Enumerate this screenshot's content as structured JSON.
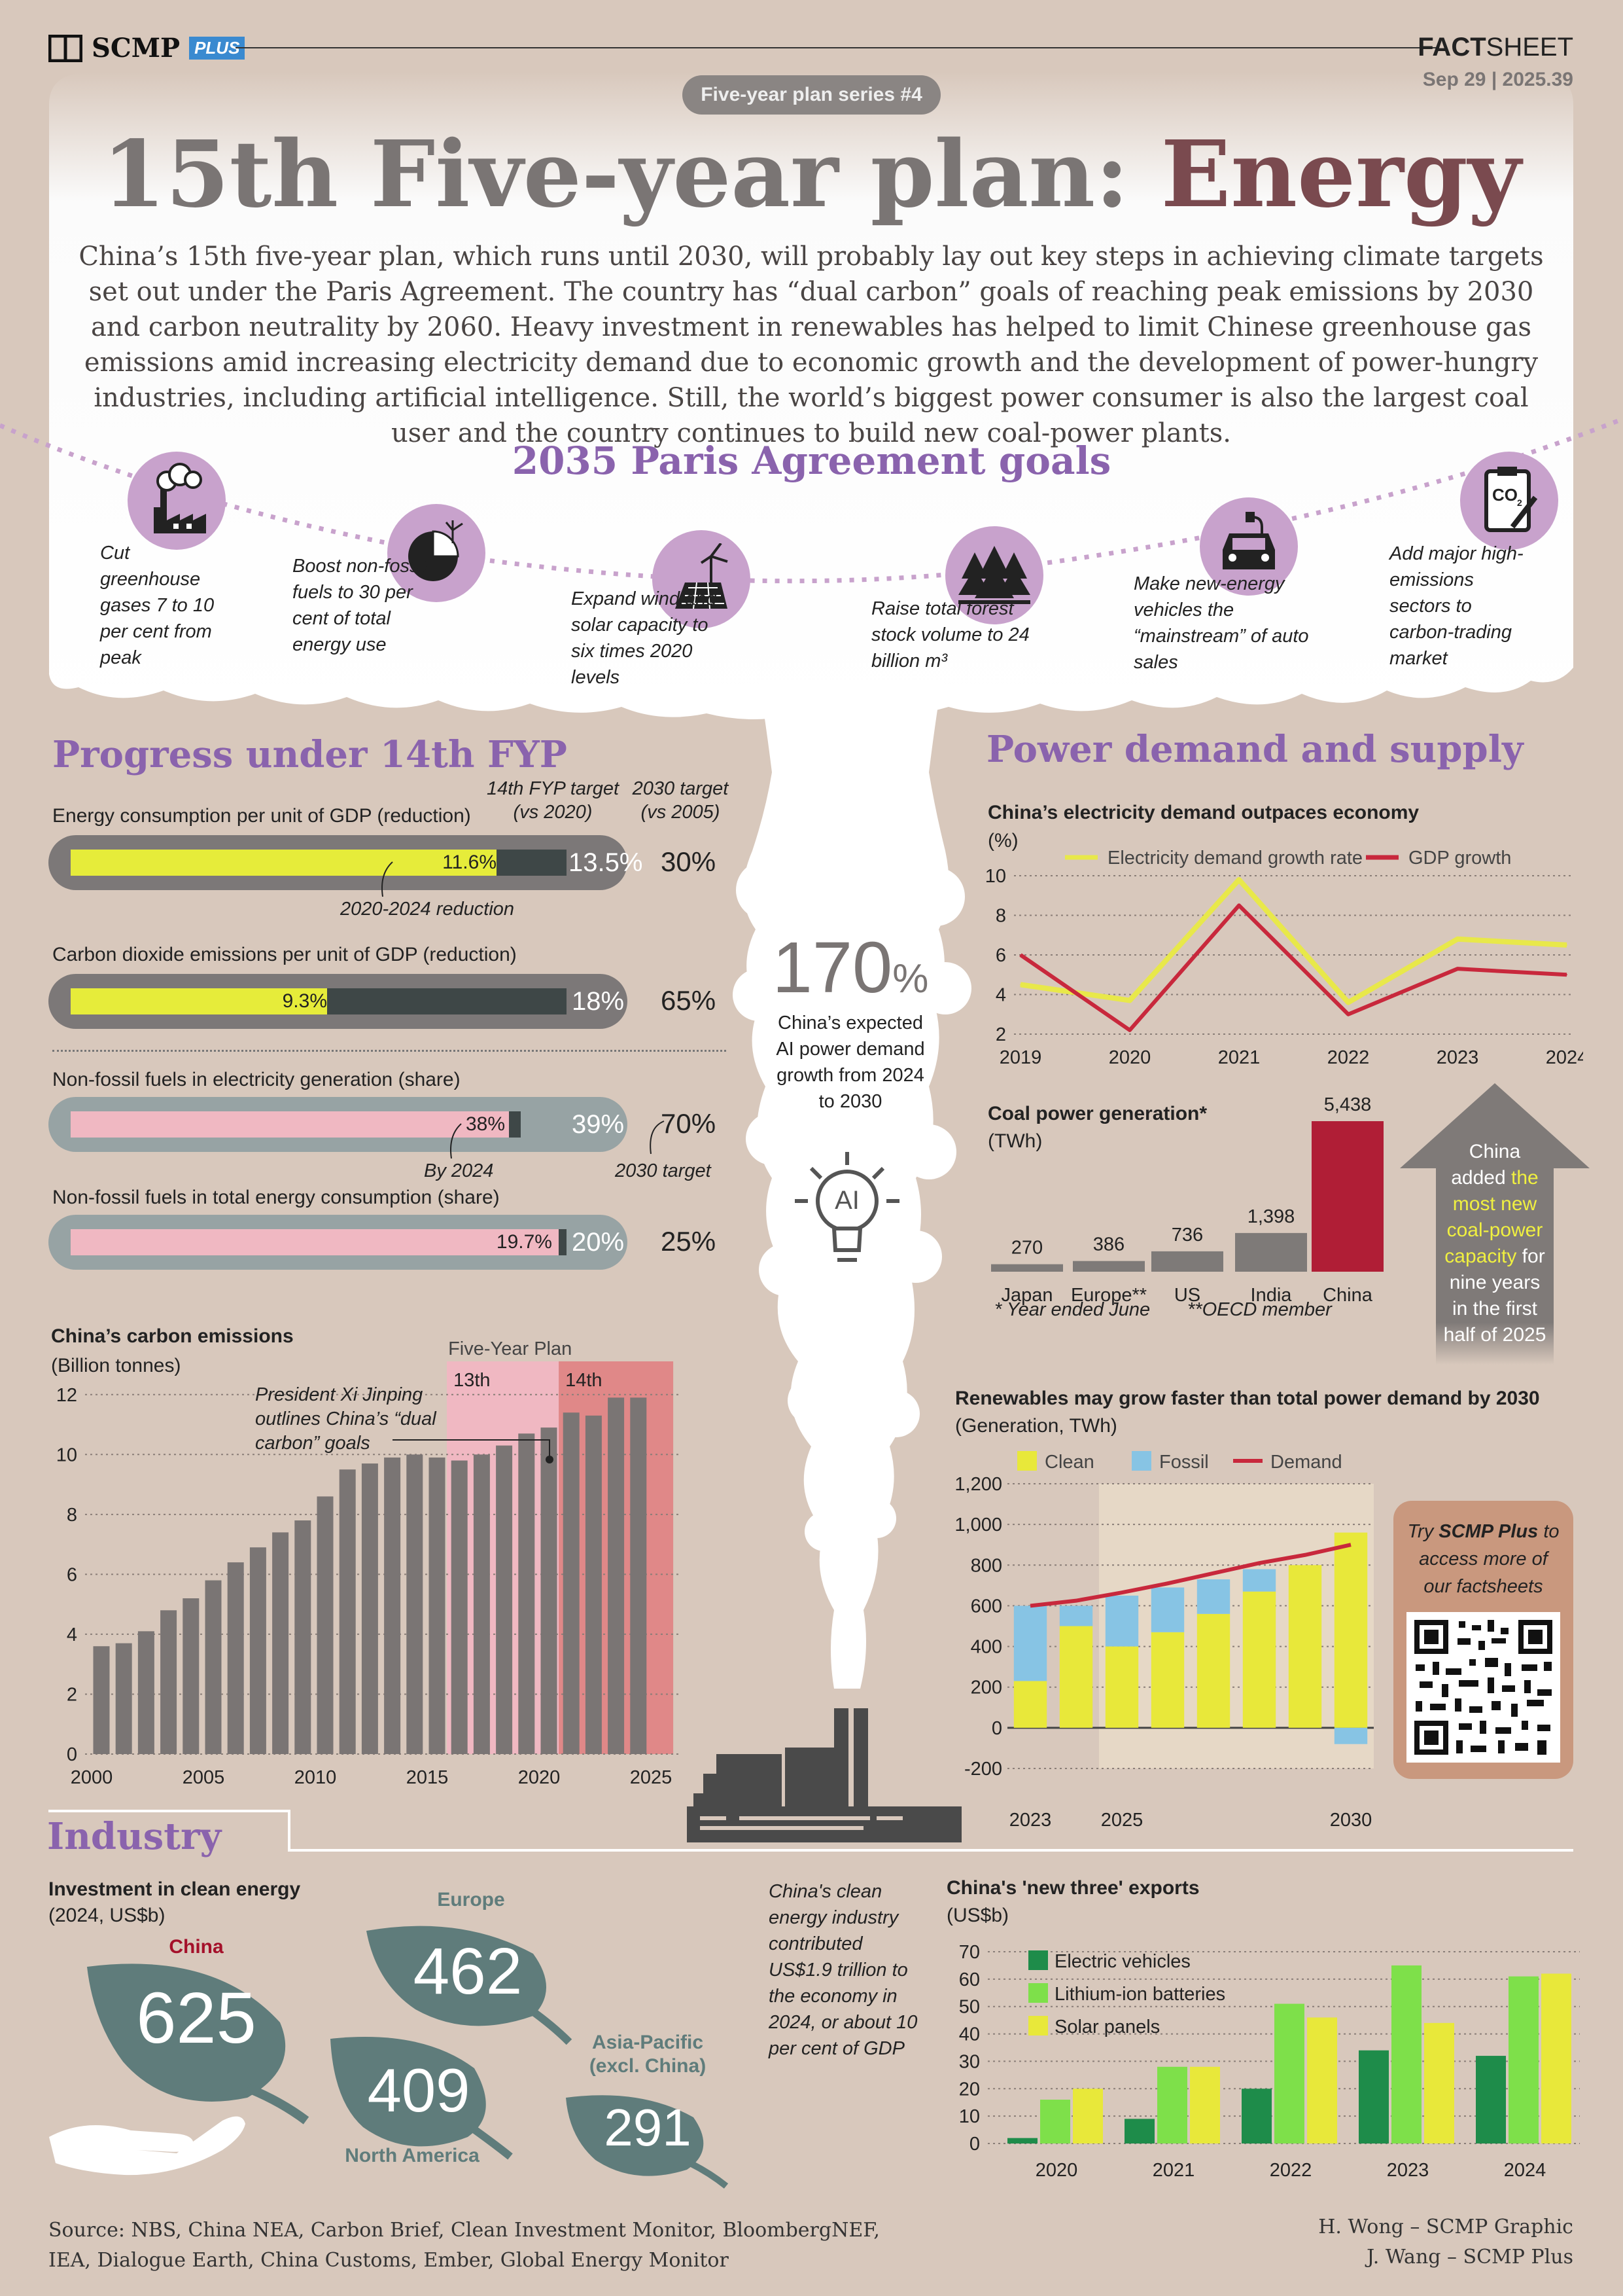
{
  "header": {
    "brand": "SCMP",
    "brand_plus": "PLUS",
    "factsheet_bold": "FACT",
    "factsheet_rest": "SHEET",
    "date": "Sep 29 | 2025.39",
    "series": "Five-year plan series #4",
    "title_main": "15th Five-year plan: ",
    "title_accent": "Energy",
    "intro": "China’s 15th five-year plan, which runs until 2030, will probably lay out key steps in achieving climate targets set out under the Paris Agreement. The country has “dual carbon” goals of reaching peak emissions by 2030 and carbon neutrality by 2060. Heavy investment in renewables has helped to limit Chinese greenhouse gas emissions amid increasing electricity demand due to economic growth and the development of power-hungry industries, including artificial intelligence. Still, the world’s biggest power consumer is also the largest coal user and the country continues to build new coal-power plants."
  },
  "paris": {
    "title": "2035 Paris Agreement goals",
    "goals": [
      {
        "icon": "factory-icon",
        "text": "Cut greenhouse gases 7 to 10 per cent from peak"
      },
      {
        "icon": "pie-chart-icon",
        "text": "Boost non-fossil fuels to 30 per cent of total energy use"
      },
      {
        "icon": "wind-solar-icon",
        "text": "Expand wind and solar capacity to six times 2020 levels"
      },
      {
        "icon": "forest-icon",
        "text": "Raise total forest stock volume to 24 billion m³"
      },
      {
        "icon": "electric-car-icon",
        "text": "Make new-energy vehicles the “mainstream” of auto sales"
      },
      {
        "icon": "co2-clipboard-icon",
        "text": "Add major high-emissions sectors to carbon-trading market"
      }
    ]
  },
  "progress": {
    "title": "Progress under 14th FYP",
    "col1": "14th FYP target (vs 2020)",
    "col2": "2030 target (vs 2005)",
    "rows": [
      {
        "label": "Energy consumption per unit of GDP (reduction)",
        "actual": "11.6%",
        "actual_value": 11.6,
        "target": "13.5%",
        "target_value": 13.5,
        "t2030": "30%"
      },
      {
        "label": "Carbon dioxide emissions per unit of GDP (reduction)",
        "actual": "9.3%",
        "actual_value": 9.3,
        "target": "18%",
        "target_value": 18,
        "t2030": "65%"
      },
      {
        "label": "Non-fossil fuels in electricity generation (share)",
        "actual": "38%",
        "actual_value": 38,
        "target": "39%",
        "target_value": 39,
        "t2030": "70%"
      },
      {
        "label": "Non-fossil fuels in total energy consumption (share)",
        "actual": "19.7%",
        "actual_value": 19.7,
        "target": "20%",
        "target_value": 20,
        "t2030": "25%"
      }
    ],
    "note_2020_2024": "2020-2024 reduction",
    "note_by2024": "By 2024",
    "note_2030": "2030 target"
  },
  "ai": {
    "value": "170",
    "unit": "%",
    "text": "China’s expected AI power demand growth from 2024 to 2030",
    "icon_label": "AI"
  },
  "sections": {
    "power": "Power demand and supply",
    "industry": "Industry"
  },
  "coal_added": {
    "pre": "China added ",
    "hl": "the most new coal-power capacity",
    "post": " for nine years in the first half of 2025"
  },
  "promo": {
    "text_pre": "Try ",
    "text_bold": "SCMP Plus",
    "text_post": " to access more of our factsheets"
  },
  "cleaninvest_note": "China's clean energy industry contributed US$1.9 trillion to the economy in 2024, or about 10 per cent of GDP",
  "footer": {
    "source": "Source: NBS, China NEA, Carbon Brief, Clean Investment Monitor, BloombergNEF, IEA, Dialogue Earth, China Customs, Ember, Global Energy Monitor",
    "credit1": "H. Wong – SCMP Graphic",
    "credit2": "J. Wang – SCMP Plus"
  },
  "chart_data": [
    {
      "id": "demand",
      "type": "line",
      "title": "China’s electricity demand outpaces economy",
      "ylabel": "(%)",
      "x": [
        2019,
        2020,
        2021,
        2022,
        2023,
        2024
      ],
      "ylim": [
        2,
        10
      ],
      "yticks": [
        2,
        4,
        6,
        8,
        10
      ],
      "series": [
        {
          "name": "Electricity demand growth rate",
          "color": "#e8e84a",
          "values": [
            4.5,
            3.7,
            9.8,
            3.6,
            6.8,
            6.5
          ]
        },
        {
          "name": "GDP growth",
          "color": "#c8283c",
          "values": [
            6.0,
            2.2,
            8.5,
            3.0,
            5.3,
            5.0
          ]
        }
      ]
    },
    {
      "id": "coal",
      "type": "bar",
      "title": "Coal power generation*",
      "ylabel": "(TWh)",
      "categories": [
        "Japan",
        "Europe**",
        "US",
        "India",
        "China"
      ],
      "values": [
        270,
        386,
        736,
        1398,
        5438
      ],
      "value_labels": [
        "270",
        "386",
        "736",
        "1,398",
        "5,438"
      ],
      "notes": [
        "* Year ended June",
        "**OECD member"
      ]
    },
    {
      "id": "renew",
      "type": "bar",
      "title": "Renewables may grow faster than total power demand by 2030",
      "ylabel": "(Generation, TWh)",
      "x": [
        2023,
        2024,
        2025,
        2026,
        2027,
        2028,
        2029,
        2030
      ],
      "xtick_labels": [
        "2023",
        "2025",
        "2030"
      ],
      "ylim": [
        -200,
        1200
      ],
      "yticks": [
        -200,
        0,
        200,
        400,
        600,
        800,
        1000,
        1200
      ],
      "series": [
        {
          "name": "Clean",
          "color": "#e8e83a",
          "values": [
            230,
            500,
            400,
            470,
            560,
            670,
            800,
            960
          ]
        },
        {
          "name": "Fossil",
          "color": "#87c4e4",
          "values": [
            370,
            100,
            250,
            220,
            170,
            110,
            0,
            -80
          ]
        },
        {
          "name": "Demand",
          "color": "#c8283c",
          "values": [
            600,
            625,
            665,
            710,
            760,
            810,
            850,
            900
          ]
        }
      ]
    },
    {
      "id": "emissions",
      "type": "bar",
      "title": "China’s carbon emissions",
      "ylabel": "(Billion tonnes)",
      "x": [
        2000,
        2001,
        2002,
        2003,
        2004,
        2005,
        2006,
        2007,
        2008,
        2009,
        2010,
        2011,
        2012,
        2013,
        2014,
        2015,
        2016,
        2017,
        2018,
        2019,
        2020,
        2021,
        2022,
        2023,
        2024
      ],
      "values": [
        3.6,
        3.7,
        4.1,
        4.8,
        5.2,
        5.8,
        6.4,
        6.9,
        7.4,
        7.8,
        8.6,
        9.5,
        9.7,
        9.9,
        10.0,
        9.9,
        9.8,
        10.0,
        10.3,
        10.7,
        10.9,
        11.4,
        11.3,
        11.9,
        11.9
      ],
      "ylim": [
        0,
        13
      ],
      "yticks": [
        0,
        2,
        4,
        6,
        8,
        10,
        12
      ],
      "xtick_labels": [
        "2000",
        "2005",
        "2010",
        "2015",
        "2020",
        "2025"
      ],
      "plan_label": "Five-Year Plan",
      "periods": [
        {
          "name": "13th",
          "from": 2016,
          "to": 2020
        },
        {
          "name": "14th",
          "from": 2021,
          "to": 2025
        }
      ],
      "annotation": "President Xi Jinping outlines China’s “dual carbon” goals"
    },
    {
      "id": "invest",
      "type": "bar",
      "title": "Investment in clean energy",
      "ylabel": "(2024, US$b)",
      "categories": [
        "China",
        "Europe",
        "North America",
        "Asia-Pacific (excl. China)"
      ],
      "values": [
        625,
        462,
        409,
        291
      ]
    },
    {
      "id": "exports",
      "type": "bar",
      "title": "China's 'new three' exports",
      "ylabel": "(US$b)",
      "categories": [
        "2020",
        "2021",
        "2022",
        "2023",
        "2024"
      ],
      "ylim": [
        0,
        70
      ],
      "yticks": [
        0,
        10,
        20,
        30,
        40,
        50,
        60,
        70
      ],
      "series": [
        {
          "name": "Electric vehicles",
          "color": "#1e8c4a",
          "values": [
            2,
            9,
            20,
            34,
            32
          ]
        },
        {
          "name": "Lithium-ion batteries",
          "color": "#7ee04a",
          "values": [
            16,
            28,
            51,
            65,
            61
          ]
        },
        {
          "name": "Solar panels",
          "color": "#e8e83a",
          "values": [
            20,
            28,
            46,
            44,
            62
          ]
        }
      ]
    }
  ]
}
